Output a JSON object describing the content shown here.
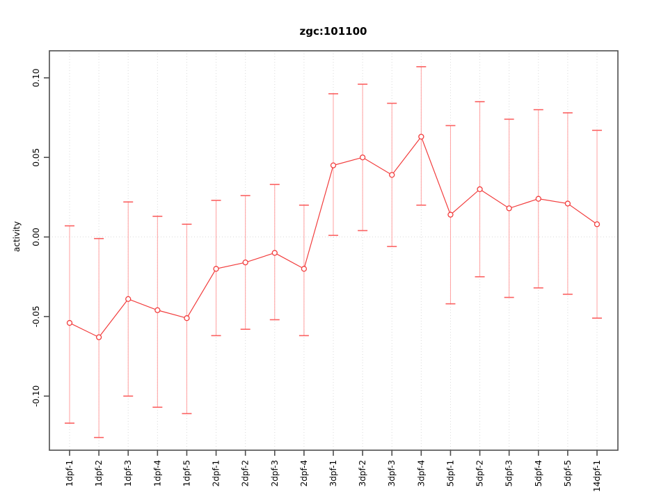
{
  "chart_data": {
    "type": "line",
    "subtype": "means-with-error-bars",
    "title": "zgc:101100",
    "xlabel": "",
    "ylabel": "activity",
    "categories": [
      "1dpf-1",
      "1dpf-2",
      "1dpf-3",
      "1dpf-4",
      "1dpf-5",
      "2dpf-1",
      "2dpf-2",
      "2dpf-3",
      "2dpf-4",
      "3dpf-1",
      "3dpf-2",
      "3dpf-3",
      "3dpf-4",
      "5dpf-1",
      "5dpf-2",
      "5dpf-3",
      "5dpf-4",
      "5dpf-5",
      "14dpf-1"
    ],
    "series": [
      {
        "name": "activity",
        "means": [
          -0.054,
          -0.063,
          -0.039,
          -0.046,
          -0.051,
          -0.02,
          -0.016,
          -0.01,
          -0.02,
          0.045,
          0.05,
          0.039,
          0.063,
          0.014,
          0.03,
          0.018,
          0.024,
          0.021,
          0.008
        ],
        "upper": [
          0.007,
          -0.001,
          0.022,
          0.013,
          0.008,
          0.023,
          0.026,
          0.033,
          0.02,
          0.09,
          0.096,
          0.084,
          0.107,
          0.07,
          0.085,
          0.074,
          0.08,
          0.078,
          0.067
        ],
        "lower": [
          -0.117,
          -0.126,
          -0.1,
          -0.107,
          -0.111,
          -0.062,
          -0.058,
          -0.052,
          -0.062,
          0.001,
          0.004,
          -0.006,
          0.02,
          -0.042,
          -0.025,
          -0.038,
          -0.032,
          -0.036,
          -0.051
        ]
      }
    ],
    "yticks": [
      -0.1,
      -0.05,
      0.0,
      0.05,
      0.1
    ],
    "ytick_labels": [
      "-0.10",
      "-0.05",
      "0.00",
      "0.05",
      "0.10"
    ],
    "ylim": [
      -0.134,
      0.117
    ],
    "grid": {
      "vertical": "dotted line at every category",
      "horizontal": "dotted line at y=0 only"
    },
    "legend": "none",
    "colors": {
      "point_line": "#f23d3d",
      "error_bar": "#ffa0a0",
      "error_cap": "#fb6060",
      "grid": "#d9d9d9",
      "axis_box": "#4d4d4d",
      "text": "#000000",
      "background": "#ffffff"
    }
  }
}
